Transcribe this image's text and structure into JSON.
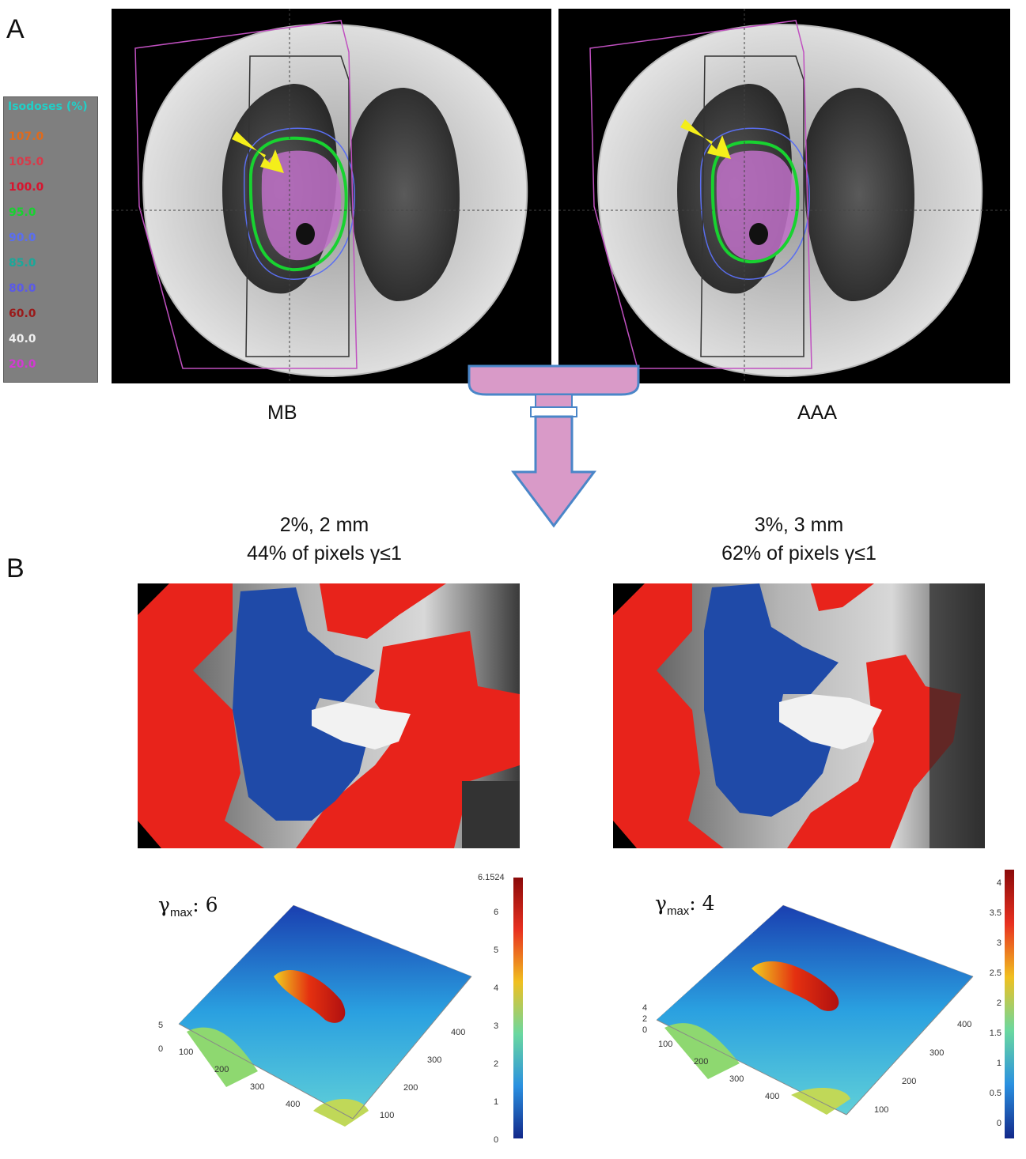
{
  "panel_a": {
    "letter": "A",
    "legend": {
      "title": "Isodoses (%)",
      "items": [
        {
          "value": "107.0",
          "color": "#e06a1c"
        },
        {
          "value": "105.0",
          "color": "#d83a4a"
        },
        {
          "value": "100.0",
          "color": "#d8142e"
        },
        {
          "value": "95.0",
          "color": "#18d230"
        },
        {
          "value": "90.0",
          "color": "#5a6ef0"
        },
        {
          "value": "85.0",
          "color": "#1aa89a"
        },
        {
          "value": "80.0",
          "color": "#5a5ae8"
        },
        {
          "value": "60.0",
          "color": "#9a1a1a"
        },
        {
          "value": "40.0",
          "color": "#f0f0f0"
        },
        {
          "value": "20.0",
          "color": "#d23ad2"
        }
      ]
    },
    "left_label": "MB",
    "right_label": "AAA"
  },
  "panel_b": {
    "letter": "B",
    "left_criteria": "2%, 2 mm",
    "left_pass": "44% of pixels γ≤1",
    "right_criteria": "3%, 3 mm",
    "right_pass": "62% of pixels γ≤1",
    "left_gmax_value": "6",
    "right_gmax_value": "4",
    "gmax_symbol": "γ",
    "gmax_sub": "max",
    "left_colorbar_top": "6.1524",
    "left_colorbar_ticks": [
      "6",
      "5",
      "4",
      "3",
      "2",
      "1",
      "0"
    ],
    "right_colorbar_ticks": [
      "4",
      "3.5",
      "3",
      "2.5",
      "2",
      "1.5",
      "1",
      "0.5",
      "0"
    ],
    "left_axis_z": [
      "5",
      "0"
    ],
    "right_axis_z": [
      "4",
      "2",
      "0"
    ],
    "axis_ticks": [
      "100",
      "200",
      "300",
      "400"
    ]
  },
  "colors": {
    "fail_red": "#e8231b",
    "pass_blue": "#1f4aa8",
    "arrow_fill": "#d99ac8",
    "arrow_stroke": "#4a86c8",
    "pointer_yellow": "#f4ee1a"
  }
}
